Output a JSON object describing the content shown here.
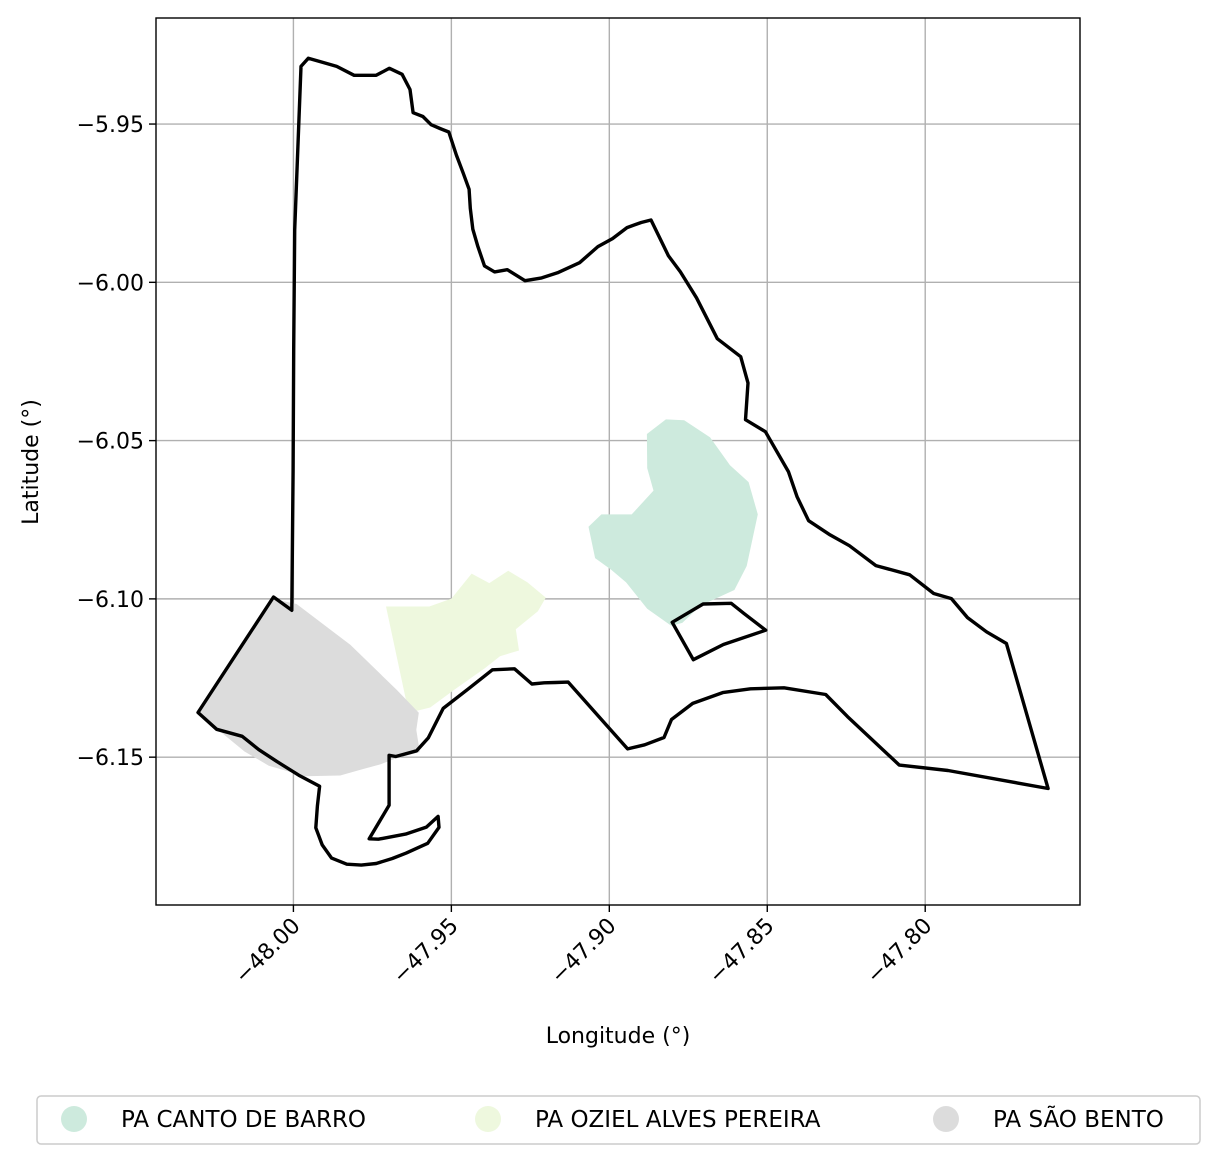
{
  "chart_data": {
    "type": "map",
    "xlabel": "Longitude (°)",
    "ylabel": "Latitude (°)",
    "xlim": [
      -48.0435,
      -47.751
    ],
    "ylim": [
      -6.1967,
      -5.9165
    ],
    "xticks": [
      -48.0,
      -47.95,
      -47.9,
      -47.85,
      -47.8
    ],
    "xtick_labels": [
      "−48.00",
      "−47.95",
      "−47.90",
      "−47.85",
      "−47.80"
    ],
    "yticks": [
      -5.95,
      -6.0,
      -6.05,
      -6.1,
      -6.15
    ],
    "ytick_labels": [
      "−5.95",
      "−6.00",
      "−6.05",
      "−6.10",
      "−6.15"
    ],
    "grid": true,
    "legend_position": "bottom-center",
    "boundary_color": "#000000",
    "legend": [
      {
        "label": "PA CANTO DE BARRO",
        "color": "#cdeadd"
      },
      {
        "label": "PA OZIEL ALVES PEREIRA",
        "color": "#eef8de"
      },
      {
        "label": "PA SÃO BENTO",
        "color": "#dcdcdc"
      }
    ],
    "boundary_outer": [
      [
        -47.9976,
        -5.9318
      ],
      [
        -47.9953,
        -5.9292
      ],
      [
        -47.9918,
        -5.9302
      ],
      [
        -47.9863,
        -5.9318
      ],
      [
        -47.9808,
        -5.9346
      ],
      [
        -47.9738,
        -5.9346
      ],
      [
        -47.9696,
        -5.9324
      ],
      [
        -47.9656,
        -5.9343
      ],
      [
        -47.9631,
        -5.9391
      ],
      [
        -47.9621,
        -5.9464
      ],
      [
        -47.959,
        -5.9476
      ],
      [
        -47.9564,
        -5.9502
      ],
      [
        -47.9536,
        -5.9514
      ],
      [
        -47.9508,
        -5.9525
      ],
      [
        -47.9484,
        -5.9598
      ],
      [
        -47.9463,
        -5.9654
      ],
      [
        -47.9444,
        -5.9706
      ],
      [
        -47.944,
        -5.9766
      ],
      [
        -47.9432,
        -5.9832
      ],
      [
        -47.9416,
        -5.9887
      ],
      [
        -47.9395,
        -5.9948
      ],
      [
        -47.9363,
        -5.9967
      ],
      [
        -47.9323,
        -5.996
      ],
      [
        -47.9267,
        -5.9995
      ],
      [
        -47.9214,
        -5.9986
      ],
      [
        -47.9164,
        -5.997
      ],
      [
        -47.9094,
        -5.9938
      ],
      [
        -47.9036,
        -5.9887
      ],
      [
        -47.899,
        -5.9862
      ],
      [
        -47.8944,
        -5.9827
      ],
      [
        -47.8899,
        -5.9811
      ],
      [
        -47.8868,
        -5.9803
      ],
      [
        -47.8813,
        -5.9916
      ],
      [
        -47.8775,
        -5.9967
      ],
      [
        -47.8724,
        -6.0049
      ],
      [
        -47.8658,
        -6.0178
      ],
      [
        -47.8584,
        -6.0235
      ],
      [
        -47.8561,
        -6.0318
      ],
      [
        -47.8569,
        -6.0434
      ],
      [
        -47.8506,
        -6.0472
      ],
      [
        -47.8433,
        -6.0598
      ],
      [
        -47.8406,
        -6.0677
      ],
      [
        -47.8369,
        -6.0753
      ],
      [
        -47.8301,
        -6.0798
      ],
      [
        -47.824,
        -6.0832
      ],
      [
        -47.8156,
        -6.0895
      ],
      [
        -47.8049,
        -6.0924
      ],
      [
        -47.7973,
        -6.0983
      ],
      [
        -47.7917,
        -6.0999
      ],
      [
        -47.7866,
        -6.1059
      ],
      [
        -47.7806,
        -6.1104
      ],
      [
        -47.7743,
        -6.1141
      ],
      [
        -47.7611,
        -6.1599
      ],
      [
        -47.7928,
        -6.1542
      ],
      [
        -47.8082,
        -6.1525
      ],
      [
        -47.8246,
        -6.1372
      ],
      [
        -47.8315,
        -6.1302
      ],
      [
        -47.8447,
        -6.1281
      ],
      [
        -47.8553,
        -6.1284
      ],
      [
        -47.8641,
        -6.1296
      ],
      [
        -47.8736,
        -6.133
      ],
      [
        -47.8803,
        -6.1381
      ],
      [
        -47.8827,
        -6.1438
      ],
      [
        -47.8888,
        -6.1461
      ],
      [
        -47.8942,
        -6.1474
      ],
      [
        -47.9016,
        -6.1391
      ],
      [
        -47.913,
        -6.1263
      ],
      [
        -47.917,
        -6.1264
      ],
      [
        -47.9206,
        -6.1265
      ],
      [
        -47.9245,
        -6.1269
      ],
      [
        -47.93,
        -6.1221
      ],
      [
        -47.937,
        -6.1224
      ],
      [
        -47.9446,
        -6.1284
      ],
      [
        -47.9526,
        -6.1346
      ],
      [
        -47.9573,
        -6.1439
      ],
      [
        -47.961,
        -6.148
      ],
      [
        -47.9676,
        -6.1498
      ],
      [
        -47.9697,
        -6.1494
      ],
      [
        -47.9697,
        -6.1652
      ],
      [
        -47.976,
        -6.1758
      ],
      [
        -47.9731,
        -6.1759
      ],
      [
        -47.9645,
        -6.1743
      ],
      [
        -47.9579,
        -6.1721
      ],
      [
        -47.9542,
        -6.1687
      ],
      [
        -47.9539,
        -6.1722
      ],
      [
        -47.9575,
        -6.1772
      ],
      [
        -47.9643,
        -6.1803
      ],
      [
        -47.9687,
        -6.182
      ],
      [
        -47.9738,
        -6.1836
      ],
      [
        -47.9785,
        -6.1841
      ],
      [
        -47.9831,
        -6.1838
      ],
      [
        -47.9879,
        -6.1819
      ],
      [
        -47.9909,
        -6.1777
      ],
      [
        -47.9929,
        -6.1723
      ],
      [
        -47.9924,
        -6.1654
      ],
      [
        -47.9917,
        -6.1592
      ],
      [
        -47.9983,
        -6.1557
      ],
      [
        -48.0052,
        -6.1514
      ],
      [
        -48.011,
        -6.1476
      ],
      [
        -48.0162,
        -6.1434
      ],
      [
        -48.0243,
        -6.1412
      ],
      [
        -48.0302,
        -6.1359
      ],
      [
        -48.0063,
        -6.0994
      ],
      [
        -48.0005,
        -6.1036
      ],
      [
        -48.0001,
        -6.0594
      ],
      [
        -47.9999,
        -6.021
      ],
      [
        -47.9996,
        -5.9834
      ],
      [
        -47.9976,
        -5.9318
      ]
    ],
    "boundary_inner": [
      [
        -47.8801,
        -6.1074
      ],
      [
        -47.8703,
        -6.1016
      ],
      [
        -47.8614,
        -6.1014
      ],
      [
        -47.8574,
        -6.1046
      ],
      [
        -47.8505,
        -6.1099
      ],
      [
        -47.8639,
        -6.1144
      ],
      [
        -47.8734,
        -6.1192
      ],
      [
        -47.8801,
        -6.1074
      ]
    ],
    "region_canto_de_barro": [
      [
        -47.8763,
        -6.0436
      ],
      [
        -47.8681,
        -6.049
      ],
      [
        -47.8618,
        -6.0578
      ],
      [
        -47.8559,
        -6.0631
      ],
      [
        -47.853,
        -6.0733
      ],
      [
        -47.8565,
        -6.0896
      ],
      [
        -47.8604,
        -6.0972
      ],
      [
        -47.8711,
        -6.1021
      ],
      [
        -47.8769,
        -6.1076
      ],
      [
        -47.8804,
        -6.1085
      ],
      [
        -47.888,
        -6.1031
      ],
      [
        -47.8947,
        -6.0948
      ],
      [
        -47.8994,
        -6.0908
      ],
      [
        -47.9045,
        -6.0871
      ],
      [
        -47.9066,
        -6.0772
      ],
      [
        -47.9025,
        -6.0733
      ],
      [
        -47.8929,
        -6.0733
      ],
      [
        -47.886,
        -6.0658
      ],
      [
        -47.888,
        -6.0587
      ],
      [
        -47.8881,
        -6.0479
      ],
      [
        -47.8821,
        -6.0433
      ],
      [
        -47.8763,
        -6.0436
      ]
    ],
    "region_oziel_alves_pereira": [
      [
        -47.9707,
        -6.1024
      ],
      [
        -47.9635,
        -6.136
      ],
      [
        -47.9567,
        -6.1343
      ],
      [
        -47.9489,
        -6.1286
      ],
      [
        -47.9394,
        -6.1219
      ],
      [
        -47.9346,
        -6.1181
      ],
      [
        -47.9286,
        -6.1163
      ],
      [
        -47.9296,
        -6.1096
      ],
      [
        -47.9226,
        -6.1039
      ],
      [
        -47.9201,
        -6.0996
      ],
      [
        -47.9259,
        -6.0948
      ],
      [
        -47.932,
        -6.0911
      ],
      [
        -47.938,
        -6.095
      ],
      [
        -47.9436,
        -6.092
      ],
      [
        -47.95,
        -6.0999
      ],
      [
        -47.957,
        -6.1024
      ],
      [
        -47.9707,
        -6.1024
      ]
    ],
    "region_sao_bento": [
      [
        -48.007,
        -6.0999
      ],
      [
        -47.999,
        -6.1016
      ],
      [
        -47.982,
        -6.1145
      ],
      [
        -47.9672,
        -6.1288
      ],
      [
        -47.9603,
        -6.136
      ],
      [
        -47.9611,
        -6.1414
      ],
      [
        -47.96,
        -6.1484
      ],
      [
        -47.9679,
        -6.1505
      ],
      [
        -47.9725,
        -6.1523
      ],
      [
        -47.9782,
        -6.1538
      ],
      [
        -47.9852,
        -6.1558
      ],
      [
        -47.9963,
        -6.156
      ],
      [
        -48.0078,
        -6.1527
      ],
      [
        -48.0155,
        -6.1482
      ],
      [
        -48.0229,
        -6.1421
      ],
      [
        -48.0302,
        -6.1359
      ],
      [
        -48.0184,
        -6.1169
      ],
      [
        -48.007,
        -6.0999
      ]
    ]
  }
}
